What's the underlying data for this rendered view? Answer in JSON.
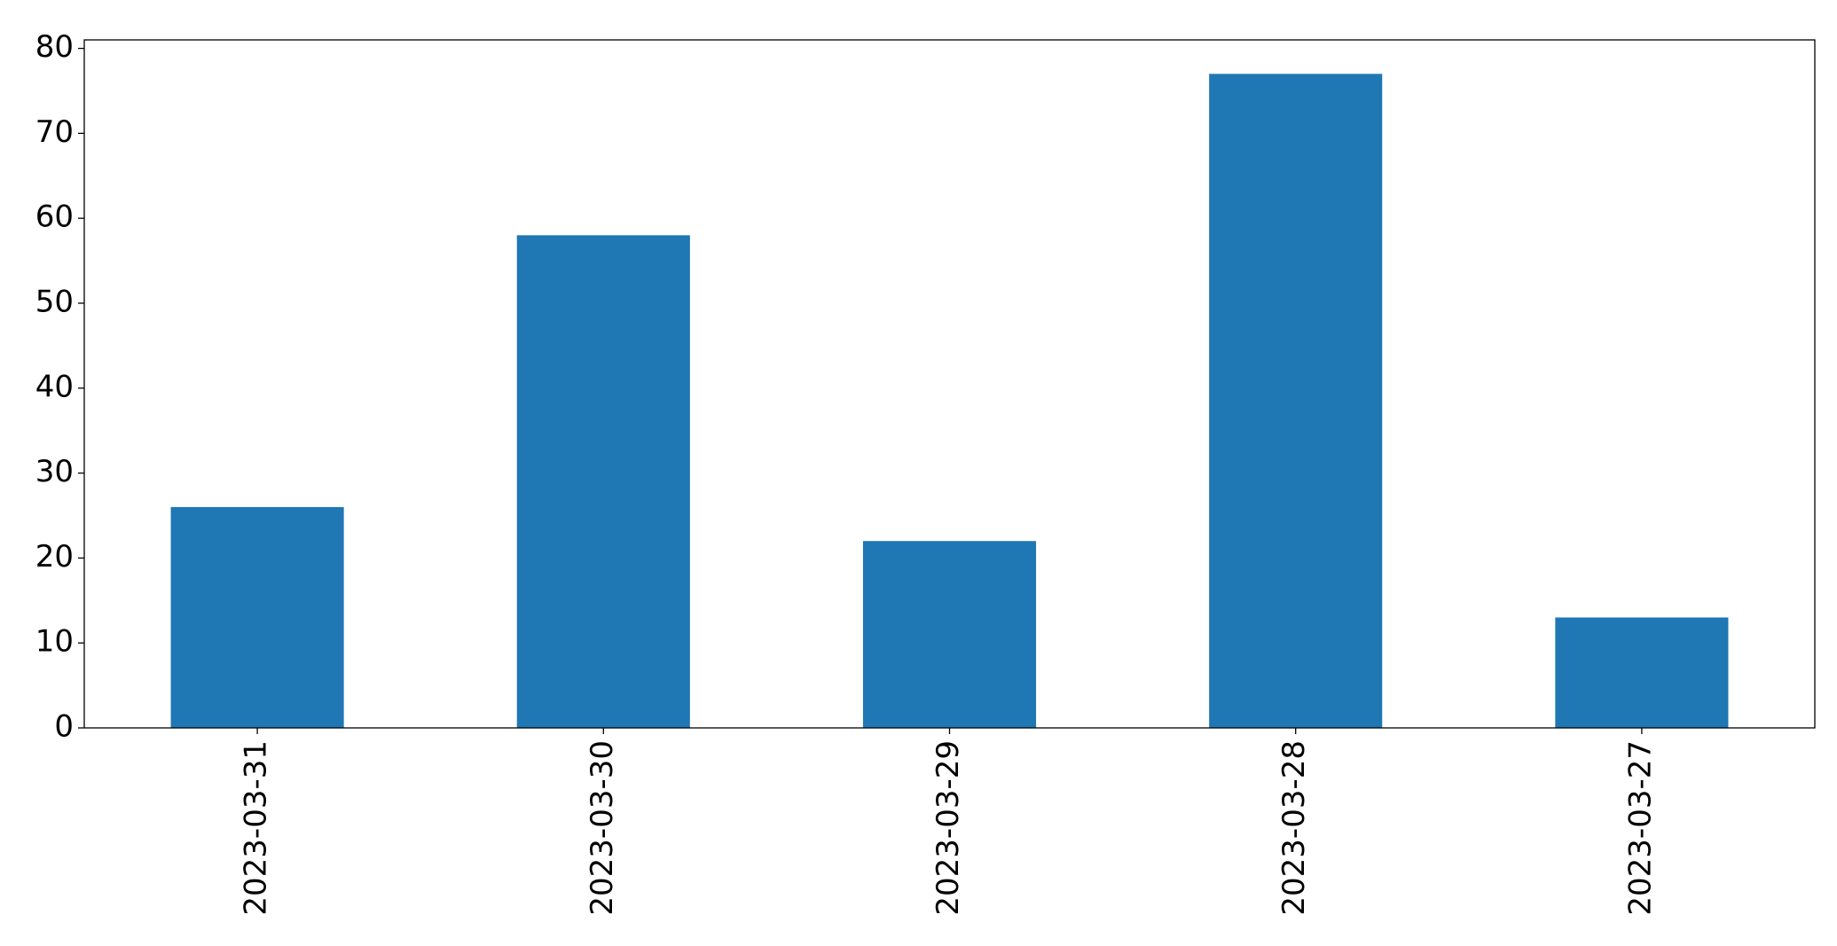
{
  "chart_data": {
    "type": "bar",
    "categories": [
      "2023-03-31",
      "2023-03-30",
      "2023-03-29",
      "2023-03-28",
      "2023-03-27"
    ],
    "values": [
      26,
      58,
      22,
      77,
      13
    ],
    "color": "#1f77b4",
    "ylim": [
      0,
      81
    ],
    "yticks": [
      0,
      10,
      20,
      30,
      40,
      50,
      60,
      70,
      80
    ],
    "grid": false
  }
}
